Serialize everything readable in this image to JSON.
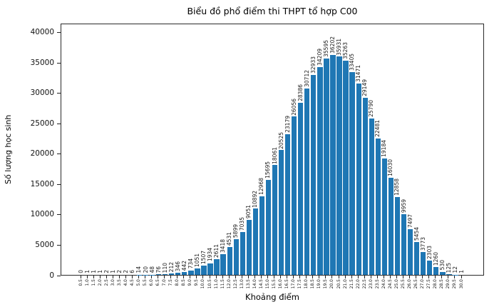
{
  "chart_data": {
    "type": "bar",
    "title": "Biểu đồ phổ điểm thi THPT tổ hợp C00",
    "xlabel": "Khoảng điểm",
    "ylabel": "Số lượng học sinh",
    "bar_color": "#1f77b4",
    "grid": false,
    "value_labels": true,
    "ylim": [
      0,
      41500
    ],
    "yticks": [
      0,
      5000,
      10000,
      15000,
      20000,
      25000,
      30000,
      35000,
      40000
    ],
    "categories": [
      "0.5",
      "1.0",
      "1.5",
      "2.0",
      "2.5",
      "3.0",
      "3.5",
      "4.0",
      "4.5",
      "5.0",
      "5.5",
      "6.0",
      "6.5",
      "7.0",
      "7.5",
      "8.0",
      "8.5",
      "9.0",
      "9.5",
      "10.0",
      "10.5",
      "11.0",
      "11.5",
      "12.0",
      "12.5",
      "13.0",
      "13.5",
      "14.0",
      "14.5",
      "15.0",
      "15.5",
      "16.0",
      "16.5",
      "17.0",
      "17.5",
      "18.0",
      "18.5",
      "19.0",
      "19.5",
      "20.0",
      "20.5",
      "21.0",
      "21.5",
      "22.0",
      "22.5",
      "23.0",
      "23.5",
      "24.0",
      "24.5",
      "25.0",
      "25.5",
      "26.0",
      "26.5",
      "27.0",
      "27.5",
      "28.0",
      "28.5",
      "29.0",
      "29.5",
      "30.0"
    ],
    "values": [
      0,
      1,
      1,
      1,
      2,
      1,
      2,
      2,
      6,
      14,
      20,
      48,
      76,
      110,
      212,
      346,
      442,
      734,
      1051,
      1507,
      1934,
      2611,
      3418,
      4531,
      5899,
      7035,
      9051,
      10892,
      12968,
      15695,
      18061,
      20525,
      23179,
      26056,
      28386,
      30712,
      32933,
      34209,
      35595,
      36202,
      35931,
      35263,
      33405,
      31471,
      29149,
      25790,
      22481,
      19184,
      16030,
      12858,
      9959,
      7497,
      5454,
      3773,
      2303,
      1260,
      530,
      125,
      12,
      1
    ]
  }
}
